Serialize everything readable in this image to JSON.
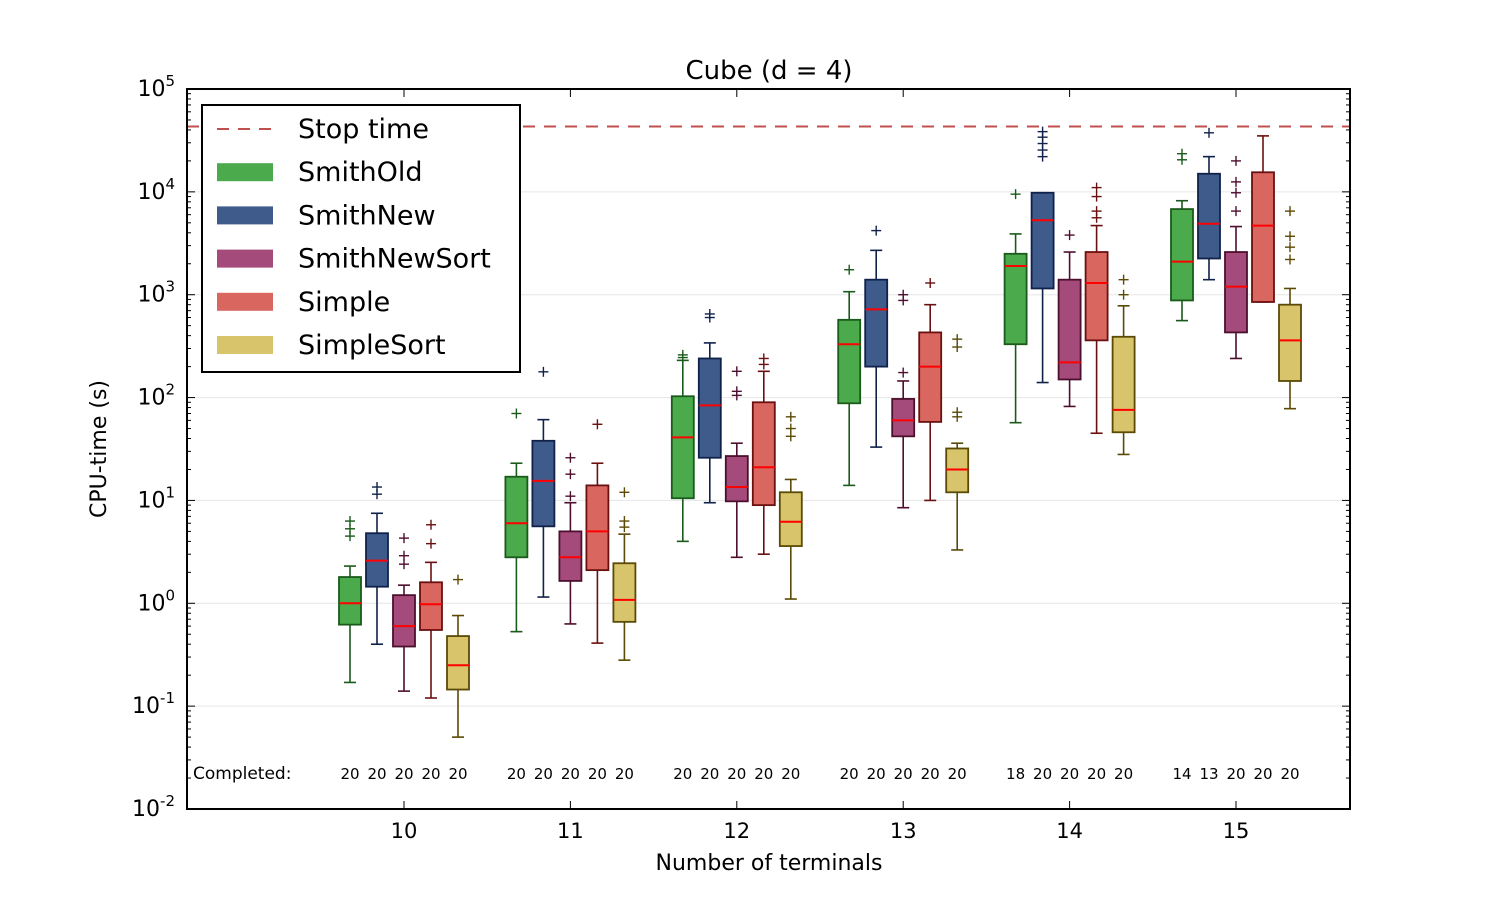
{
  "chart_data": {
    "type": "box",
    "title": "Cube (d = 4)",
    "xlabel": "Number of terminals",
    "ylabel": "CPU-time (s)",
    "yscale": "log",
    "ylim": [
      0.01,
      100000
    ],
    "y_tick_labels": [
      {
        "base": "10",
        "exp": "-2",
        "value": 0.01
      },
      {
        "base": "10",
        "exp": "-1",
        "value": 0.1
      },
      {
        "base": "10",
        "exp": "0",
        "value": 1
      },
      {
        "base": "10",
        "exp": "1",
        "value": 10
      },
      {
        "base": "10",
        "exp": "2",
        "value": 100
      },
      {
        "base": "10",
        "exp": "3",
        "value": 1000
      },
      {
        "base": "10",
        "exp": "4",
        "value": 10000
      },
      {
        "base": "10",
        "exp": "5",
        "value": 100000
      }
    ],
    "categories": [
      "10",
      "11",
      "12",
      "13",
      "14",
      "15"
    ],
    "grid": "horizontal",
    "legend_position": "top-left",
    "stop_time": {
      "label": "Stop time",
      "value": 43200,
      "color": "#c0504d"
    },
    "completed_label": "Completed:",
    "series": [
      {
        "name": "SmithOld",
        "color": "#4aaa4c",
        "edge": "#1a5a1a",
        "completed": [
          "20",
          "20",
          "20",
          "20",
          "18",
          "14"
        ],
        "boxes": [
          {
            "whislo": 0.17,
            "q1": 0.62,
            "med": 1.0,
            "q3": 1.8,
            "whishi": 2.3,
            "fliers": [
              4.5,
              5.3,
              6.3
            ]
          },
          {
            "whislo": 0.53,
            "q1": 2.8,
            "med": 6.0,
            "q3": 17,
            "whishi": 23,
            "fliers": [
              70
            ]
          },
          {
            "whislo": 4.0,
            "q1": 10.5,
            "med": 41,
            "q3": 103,
            "whishi": 230,
            "fliers": [
              245,
              260
            ]
          },
          {
            "whislo": 14,
            "q1": 88,
            "med": 330,
            "q3": 570,
            "whishi": 1070,
            "fliers": [
              1750
            ]
          },
          {
            "whislo": 57,
            "q1": 330,
            "med": 1900,
            "q3": 2500,
            "whishi": 3900,
            "fliers": [
              9500
            ]
          },
          {
            "whislo": 560,
            "q1": 880,
            "med": 2100,
            "q3": 6800,
            "whishi": 8200,
            "fliers": [
              20500,
              23500
            ]
          }
        ]
      },
      {
        "name": "SmithNew",
        "color": "#3f5b8b",
        "edge": "#10224a",
        "completed": [
          "20",
          "20",
          "20",
          "20",
          "20",
          "13"
        ],
        "boxes": [
          {
            "whislo": 0.4,
            "q1": 1.45,
            "med": 2.6,
            "q3": 4.8,
            "whishi": 7.5,
            "fliers": [
              11.5,
              13.5
            ]
          },
          {
            "whislo": 1.15,
            "q1": 5.6,
            "med": 15.5,
            "q3": 38,
            "whishi": 61,
            "fliers": [
              178
            ]
          },
          {
            "whislo": 9.5,
            "q1": 26,
            "med": 84,
            "q3": 240,
            "whishi": 340,
            "fliers": [
              600,
              650
            ]
          },
          {
            "whislo": 33,
            "q1": 200,
            "med": 720,
            "q3": 1400,
            "whishi": 2700,
            "fliers": [
              4200
            ]
          },
          {
            "whislo": 140,
            "q1": 1150,
            "med": 5300,
            "q3": 9800,
            "whishi": 9800,
            "fliers": [
              22000,
              25500,
              29500,
              34000,
              38500
            ]
          },
          {
            "whislo": 1400,
            "q1": 2250,
            "med": 4900,
            "q3": 15000,
            "whishi": 22000,
            "fliers": [
              37500
            ]
          }
        ]
      },
      {
        "name": "SmithNewSort",
        "color": "#a54b7b",
        "edge": "#4d0f2e",
        "completed": [
          "20",
          "20",
          "20",
          "20",
          "20",
          "20"
        ],
        "boxes": [
          {
            "whislo": 0.14,
            "q1": 0.38,
            "med": 0.6,
            "q3": 1.2,
            "whishi": 1.5,
            "fliers": [
              2.4,
              2.9,
              4.3
            ]
          },
          {
            "whislo": 0.63,
            "q1": 1.65,
            "med": 2.8,
            "q3": 5.0,
            "whishi": 9.5,
            "fliers": [
              11,
              18,
              26
            ]
          },
          {
            "whislo": 2.8,
            "q1": 9.8,
            "med": 13.5,
            "q3": 27,
            "whishi": 36,
            "fliers": [
              105,
              115,
              180
            ]
          },
          {
            "whislo": 8.5,
            "q1": 42,
            "med": 60,
            "q3": 97,
            "whishi": 145,
            "fliers": [
              175,
              880,
              1000
            ]
          },
          {
            "whislo": 82,
            "q1": 150,
            "med": 220,
            "q3": 1400,
            "whishi": 2600,
            "fliers": [
              3800
            ]
          },
          {
            "whislo": 240,
            "q1": 430,
            "med": 1200,
            "q3": 2600,
            "whishi": 4600,
            "fliers": [
              6500,
              9800,
              12500,
              20000
            ]
          }
        ]
      },
      {
        "name": "Simple",
        "color": "#d9665f",
        "edge": "#6b1010",
        "completed": [
          "20",
          "20",
          "20",
          "20",
          "20",
          "20"
        ],
        "boxes": [
          {
            "whislo": 0.12,
            "q1": 0.55,
            "med": 0.98,
            "q3": 1.6,
            "whishi": 2.5,
            "fliers": [
              3.8,
              5.8
            ]
          },
          {
            "whislo": 0.41,
            "q1": 2.1,
            "med": 5.0,
            "q3": 14,
            "whishi": 23,
            "fliers": [
              55
            ]
          },
          {
            "whislo": 3.0,
            "q1": 9.0,
            "med": 21,
            "q3": 90,
            "whishi": 180,
            "fliers": [
              210,
              240
            ]
          },
          {
            "whislo": 10,
            "q1": 58,
            "med": 200,
            "q3": 430,
            "whishi": 800,
            "fliers": [
              1300
            ]
          },
          {
            "whislo": 45,
            "q1": 360,
            "med": 1300,
            "q3": 2600,
            "whishi": 4700,
            "fliers": [
              5600,
              6500,
              9000,
              11000
            ]
          },
          {
            "whislo": 850,
            "q1": 850,
            "med": 4700,
            "q3": 15500,
            "whishi": 35000,
            "fliers": []
          }
        ]
      },
      {
        "name": "SimpleSort",
        "color": "#d8c46b",
        "edge": "#5a4a06",
        "completed": [
          "20",
          "20",
          "20",
          "20",
          "20",
          "20"
        ],
        "boxes": [
          {
            "whislo": 0.05,
            "q1": 0.145,
            "med": 0.25,
            "q3": 0.48,
            "whishi": 0.76,
            "fliers": [
              1.7
            ]
          },
          {
            "whislo": 0.28,
            "q1": 0.66,
            "med": 1.08,
            "q3": 2.45,
            "whishi": 4.7,
            "fliers": [
              5.5,
              6.3,
              12
            ]
          },
          {
            "whislo": 1.1,
            "q1": 3.6,
            "med": 6.2,
            "q3": 12,
            "whishi": 16,
            "fliers": [
              42,
              50,
              65
            ]
          },
          {
            "whislo": 3.3,
            "q1": 12,
            "med": 20,
            "q3": 32,
            "whishi": 36,
            "fliers": [
              65,
              72,
              310,
              370
            ]
          },
          {
            "whislo": 28,
            "q1": 46,
            "med": 76,
            "q3": 390,
            "whishi": 780,
            "fliers": [
              1000,
              1400
            ]
          },
          {
            "whislo": 78,
            "q1": 145,
            "med": 360,
            "q3": 800,
            "whishi": 1150,
            "fliers": [
              2200,
              2900,
              3700,
              6500
            ]
          }
        ]
      }
    ]
  }
}
